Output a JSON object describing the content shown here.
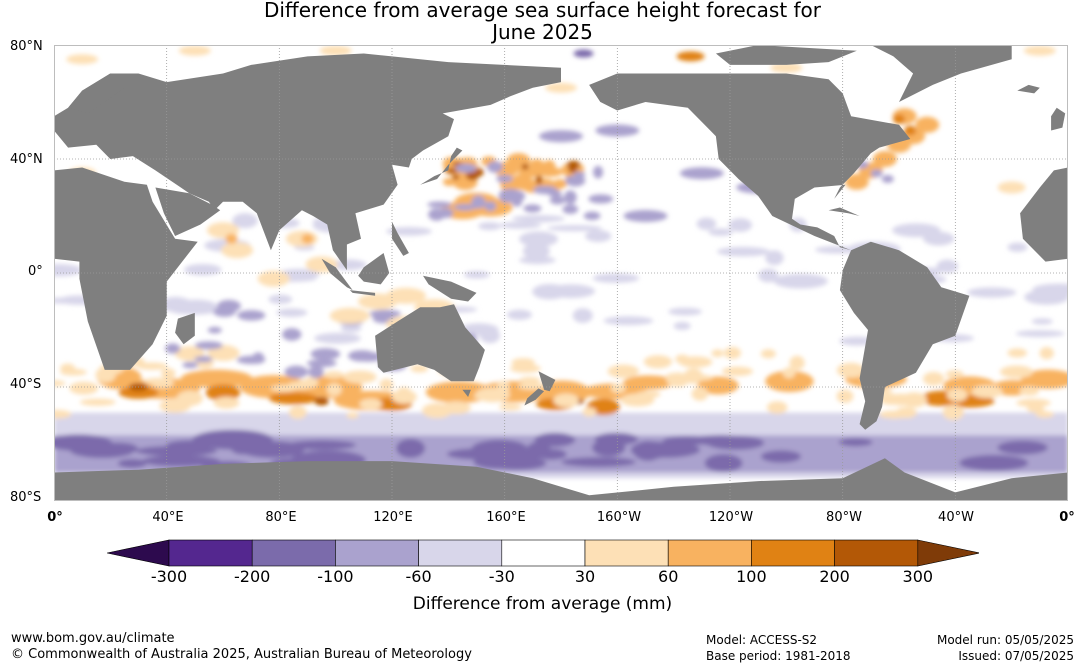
{
  "title": {
    "line1": "Difference from average sea surface height forecast for",
    "line2": "June 2025"
  },
  "map": {
    "lat_labels": [
      "80°N",
      "40°N",
      "0°",
      "40°S",
      "80°S"
    ],
    "lon_labels": [
      "0°",
      "40°E",
      "80°E",
      "120°E",
      "160°E",
      "160°W",
      "120°W",
      "80°W",
      "40°W",
      "0°"
    ],
    "colors": {
      "land": "#7f7f7f",
      "ocean": "#ffffff",
      "gridline": "#9a9a9a"
    },
    "gridlines": true,
    "projection": "equirectangular, 0° to 360° longitude, 80°N to 80°S"
  },
  "colorbar": {
    "title": "Difference from average (mm)",
    "tick_labels": [
      "-300",
      "-200",
      "-100",
      "-60",
      "-30",
      "30",
      "60",
      "100",
      "200",
      "300"
    ],
    "colors": [
      "#2d0a4e",
      "#54278f",
      "#7b6bab",
      "#aaa2ce",
      "#d8d6ea",
      "#ffffff",
      "#fde0b6",
      "#f8b260",
      "#e08214",
      "#b35806",
      "#7f3b08"
    ]
  },
  "footer": {
    "website": "www.bom.gov.au/climate",
    "copyright": "© Commonwealth of Australia 2025, Australian Bureau of Meteorology",
    "model": "Model: ACCESS-S2",
    "base_period": "Base period: 1981-2018",
    "model_run": "Model run: 05/05/2025",
    "issued": "Issued: 07/05/2025"
  }
}
